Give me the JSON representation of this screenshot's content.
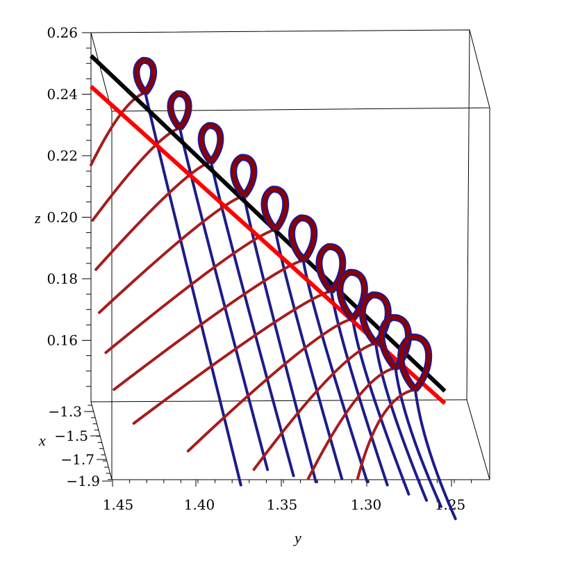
{
  "chart_data": {
    "type": "3d-curves",
    "title": "",
    "axes": {
      "y": {
        "label": "y",
        "ticks": [
          "1.45",
          "1.40",
          "1.35",
          "1.30",
          "1.25"
        ],
        "range": [
          1.465,
          1.235
        ],
        "reversed": true
      },
      "z": {
        "label": "z",
        "ticks": [
          "0.26",
          "0.24",
          "0.22",
          "0.20",
          "0.18",
          "0.16"
        ],
        "range": [
          0.14,
          0.26
        ]
      },
      "x": {
        "label": "x",
        "ticks": [
          "−1.3",
          "−1.5",
          "−1.7",
          "−1.9"
        ],
        "range": [
          -1.3,
          -1.9
        ]
      }
    },
    "grid": false,
    "box": true,
    "series": [
      {
        "role": "black-line",
        "color": "#000000",
        "points": [
          [
            1.465,
            0.2525
          ],
          [
            1.25,
            0.1435
          ]
        ]
      },
      {
        "role": "red-line",
        "color": "#ff0000",
        "points": [
          [
            1.465,
            0.2425
          ],
          [
            1.25,
            0.1395
          ]
        ]
      }
    ],
    "loops": [
      {
        "y": 1.432,
        "z": 0.2405,
        "size": 0.8,
        "tail_start": [
          1.465,
          0.217
        ],
        "tail_end": [
          1.401,
          0.201
        ]
      },
      {
        "y": 1.411,
        "z": 0.229,
        "size": 0.85,
        "tail_start": [
          1.464,
          0.199
        ],
        "tail_end": [
          1.383,
          0.195
        ]
      },
      {
        "y": 1.392,
        "z": 0.218,
        "size": 0.9,
        "tail_start": [
          1.462,
          0.183
        ],
        "tail_end": [
          1.366,
          0.187
        ]
      },
      {
        "y": 1.372,
        "z": 0.207,
        "size": 0.95,
        "tail_start": [
          1.46,
          0.169
        ],
        "tail_end": [
          1.35,
          0.179
        ]
      },
      {
        "y": 1.353,
        "z": 0.196,
        "size": 1.0,
        "tail_start": [
          1.456,
          0.156
        ],
        "tail_end": [
          1.333,
          0.172
        ]
      },
      {
        "y": 1.336,
        "z": 0.186,
        "size": 1.05,
        "tail_start": [
          1.451,
          0.144
        ],
        "tail_end": [
          1.317,
          0.165
        ]
      },
      {
        "y": 1.319,
        "z": 0.176,
        "size": 1.1,
        "tail_start": [
          1.439,
          0.133
        ],
        "tail_end": [
          1.303,
          0.158
        ]
      },
      {
        "y": 1.306,
        "z": 0.167,
        "size": 1.15,
        "tail_start": [
          1.406,
          0.124
        ],
        "tail_end": [
          1.29,
          0.151
        ]
      },
      {
        "y": 1.292,
        "z": 0.159,
        "size": 1.2,
        "tail_start": [
          1.366,
          0.118
        ],
        "tail_end": [
          1.278,
          0.145
        ]
      },
      {
        "y": 1.28,
        "z": 0.151,
        "size": 1.25,
        "tail_start": [
          1.333,
          0.115
        ],
        "tail_end": [
          1.268,
          0.139
        ]
      },
      {
        "y": 1.268,
        "z": 0.144,
        "size": 1.3,
        "tail_start": [
          1.303,
          0.115
        ],
        "tail_end": [
          1.258,
          0.133
        ]
      }
    ],
    "colors": {
      "loop_outline": "#1a1a9a",
      "loop_fill": "#8b0000",
      "tail": "#a61c1c",
      "blue_tail": "#1c1c8a"
    }
  }
}
